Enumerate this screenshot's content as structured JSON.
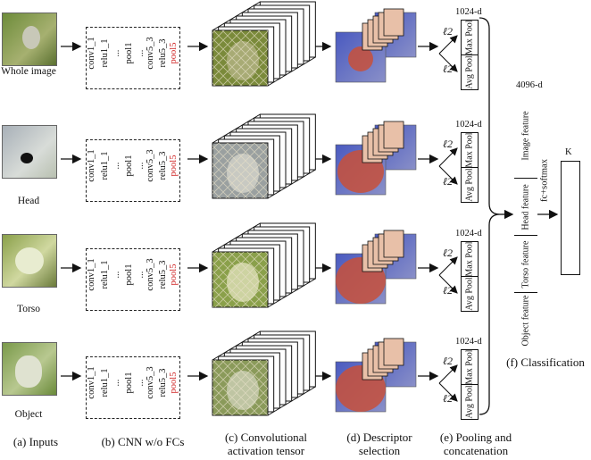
{
  "inputs": [
    {
      "label": "Whole image"
    },
    {
      "label": "Head"
    },
    {
      "label": "Torso"
    },
    {
      "label": "Object"
    }
  ],
  "cnn_layers": [
    "conv1_1",
    "relu1_1",
    "...",
    "pool1",
    "...",
    "conv5_3",
    "relu5_3",
    "pool5"
  ],
  "pooling": {
    "dim": "1024-d",
    "l2": "ℓ2",
    "max_pool": "Max Pool",
    "avg_pool": "Avg Pool"
  },
  "classification": {
    "dim": "4096-d",
    "features": [
      "Image feature",
      "Head feature",
      "Torso feature",
      "Object feature"
    ],
    "fc_label": "fc+softmax",
    "output_label": "K"
  },
  "captions": {
    "a": "(a) Inputs",
    "b": "(b) CNN w/o FCs",
    "c1": "(c) Convolutional",
    "c2": "activation tensor",
    "d1": "(d) Descriptor",
    "d2": "selection",
    "e1": "(e) Pooling and",
    "e2": "concatenation",
    "f": "(f) Classification"
  },
  "colors": {
    "photo_green": "#7a8a4a",
    "tensor_face": "#8c9a6a",
    "selection_blue": "#3a4fb0",
    "selection_red": "#c8503a",
    "highlight_red": "#d12a2a"
  }
}
